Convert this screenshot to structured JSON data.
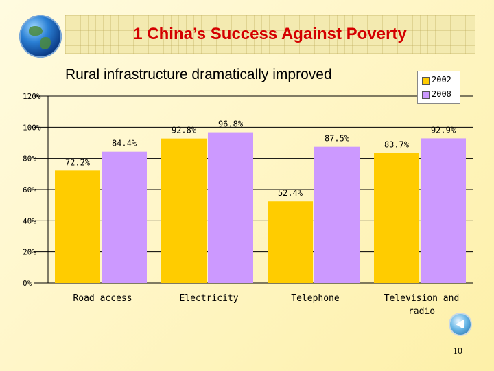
{
  "header": {
    "title": "1 China’s Success Against Poverty"
  },
  "page": {
    "number": "10"
  },
  "colors": {
    "series_2002": "#ffcc00",
    "series_2008": "#cc99ff",
    "title": "#d40000"
  },
  "nav": {
    "icon": "back-arrow-icon"
  },
  "chart_data": {
    "type": "bar",
    "title": "Rural infrastructure dramatically improved",
    "xlabel": "",
    "ylabel": "",
    "ylim": [
      0,
      120
    ],
    "yticks": [
      "0%",
      "20%",
      "40%",
      "60%",
      "80%",
      "100%",
      "120%"
    ],
    "grid": true,
    "legend": "top-right",
    "categories": [
      [
        "Road access"
      ],
      [
        "Electricity"
      ],
      [
        "Telephone"
      ],
      [
        "Television and",
        "radio"
      ]
    ],
    "series": [
      {
        "name": "2002",
        "values": [
          72.2,
          92.8,
          52.4,
          83.7
        ],
        "labels": [
          "72.2%",
          "92.8%",
          "52.4%",
          "83.7%"
        ]
      },
      {
        "name": "2008",
        "values": [
          84.4,
          96.8,
          87.5,
          92.9
        ],
        "labels": [
          "84.4%",
          "96.8%",
          "87.5%",
          "92.9%"
        ]
      }
    ]
  }
}
